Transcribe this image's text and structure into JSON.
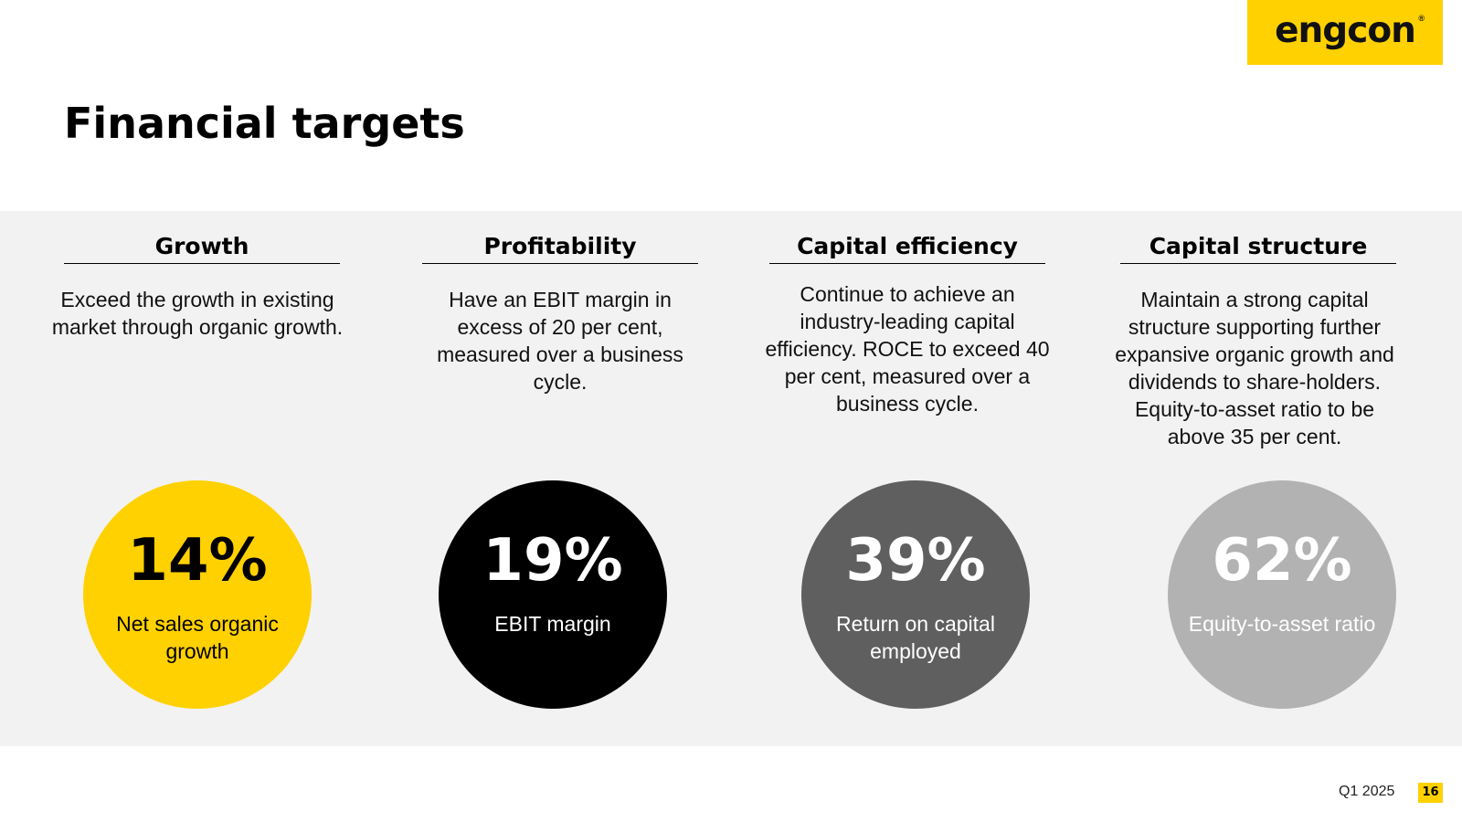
{
  "logo": {
    "text": "engcon",
    "registered": "®",
    "color": "#FFD100"
  },
  "title": "Financial targets",
  "targets": [
    {
      "heading": "Growth",
      "description": "Exceed the growth in existing market through organic growth.",
      "value": "14%",
      "label": "Net sales organic growth",
      "circle_color": "#FFD100",
      "text_color": "#000000"
    },
    {
      "heading": "Profitability",
      "description": "Have an EBIT margin in excess of 20 per cent, measured over a business cycle.",
      "value": "19%",
      "label": "EBIT margin",
      "circle_color": "#000000",
      "text_color": "#FFFFFF"
    },
    {
      "heading": "Capital efficiency",
      "description": "Continue to achieve an industry-leading capital efficiency. ROCE to exceed 40 per cent, measured over a business cycle.",
      "value": "39%",
      "label": "Return on capital employed",
      "circle_color": "#5F5F5F",
      "text_color": "#FFFFFF"
    },
    {
      "heading": "Capital structure",
      "description": "Maintain a strong capital structure supporting further expansive organic growth and dividends to share-holders. Equity-to-asset ratio to be above 35 per cent.",
      "value": "62%",
      "label": "Equity-to-asset ratio",
      "circle_color": "#B2B2B2",
      "text_color": "#FFFFFF"
    }
  ],
  "footer": {
    "period": "Q1 2025",
    "page_number": "16"
  }
}
